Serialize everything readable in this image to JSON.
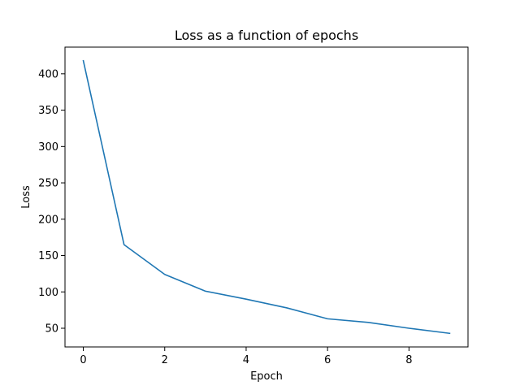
{
  "chart_data": {
    "type": "line",
    "title": "Loss as a function of epochs",
    "xlabel": "Epoch",
    "ylabel": "Loss",
    "xlim": [
      -0.45,
      9.45
    ],
    "ylim": [
      24.3,
      436.7
    ],
    "xticks": [
      0,
      2,
      4,
      6,
      8
    ],
    "yticks": [
      50,
      100,
      150,
      200,
      250,
      300,
      350,
      400
    ],
    "grid": false,
    "series": [
      {
        "color": "#1f77b4",
        "x": [
          0,
          1,
          2,
          3,
          4,
          5,
          6,
          7,
          8,
          9
        ],
        "y": [
          418,
          165,
          124,
          101,
          90,
          78,
          63,
          58,
          50,
          43
        ]
      }
    ]
  }
}
